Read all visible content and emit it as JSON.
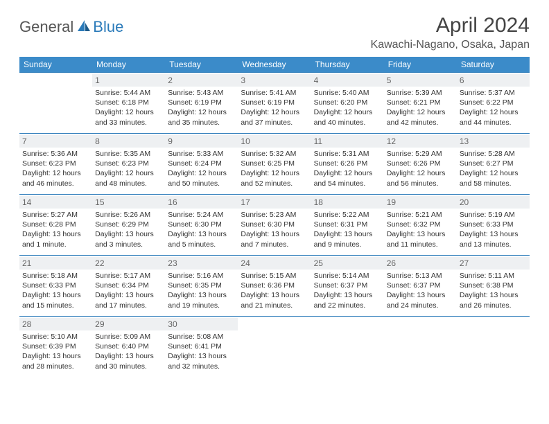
{
  "logo": {
    "general": "General",
    "blue": "Blue"
  },
  "title": "April 2024",
  "location": "Kawachi-Nagano, Osaka, Japan",
  "colors": {
    "header_bg": "#3b8bc9",
    "border": "#2a7ab9",
    "daynum_bg": "#eef0f2",
    "text": "#333333",
    "logo_gray": "#555555",
    "logo_blue": "#2a7ab9"
  },
  "weekdays": [
    "Sunday",
    "Monday",
    "Tuesday",
    "Wednesday",
    "Thursday",
    "Friday",
    "Saturday"
  ],
  "weeks": [
    [
      {
        "empty": true
      },
      {
        "n": "1",
        "sr": "Sunrise: 5:44 AM",
        "ss": "Sunset: 6:18 PM",
        "d1": "Daylight: 12 hours",
        "d2": "and 33 minutes."
      },
      {
        "n": "2",
        "sr": "Sunrise: 5:43 AM",
        "ss": "Sunset: 6:19 PM",
        "d1": "Daylight: 12 hours",
        "d2": "and 35 minutes."
      },
      {
        "n": "3",
        "sr": "Sunrise: 5:41 AM",
        "ss": "Sunset: 6:19 PM",
        "d1": "Daylight: 12 hours",
        "d2": "and 37 minutes."
      },
      {
        "n": "4",
        "sr": "Sunrise: 5:40 AM",
        "ss": "Sunset: 6:20 PM",
        "d1": "Daylight: 12 hours",
        "d2": "and 40 minutes."
      },
      {
        "n": "5",
        "sr": "Sunrise: 5:39 AM",
        "ss": "Sunset: 6:21 PM",
        "d1": "Daylight: 12 hours",
        "d2": "and 42 minutes."
      },
      {
        "n": "6",
        "sr": "Sunrise: 5:37 AM",
        "ss": "Sunset: 6:22 PM",
        "d1": "Daylight: 12 hours",
        "d2": "and 44 minutes."
      }
    ],
    [
      {
        "n": "7",
        "sr": "Sunrise: 5:36 AM",
        "ss": "Sunset: 6:23 PM",
        "d1": "Daylight: 12 hours",
        "d2": "and 46 minutes."
      },
      {
        "n": "8",
        "sr": "Sunrise: 5:35 AM",
        "ss": "Sunset: 6:23 PM",
        "d1": "Daylight: 12 hours",
        "d2": "and 48 minutes."
      },
      {
        "n": "9",
        "sr": "Sunrise: 5:33 AM",
        "ss": "Sunset: 6:24 PM",
        "d1": "Daylight: 12 hours",
        "d2": "and 50 minutes."
      },
      {
        "n": "10",
        "sr": "Sunrise: 5:32 AM",
        "ss": "Sunset: 6:25 PM",
        "d1": "Daylight: 12 hours",
        "d2": "and 52 minutes."
      },
      {
        "n": "11",
        "sr": "Sunrise: 5:31 AM",
        "ss": "Sunset: 6:26 PM",
        "d1": "Daylight: 12 hours",
        "d2": "and 54 minutes."
      },
      {
        "n": "12",
        "sr": "Sunrise: 5:29 AM",
        "ss": "Sunset: 6:26 PM",
        "d1": "Daylight: 12 hours",
        "d2": "and 56 minutes."
      },
      {
        "n": "13",
        "sr": "Sunrise: 5:28 AM",
        "ss": "Sunset: 6:27 PM",
        "d1": "Daylight: 12 hours",
        "d2": "and 58 minutes."
      }
    ],
    [
      {
        "n": "14",
        "sr": "Sunrise: 5:27 AM",
        "ss": "Sunset: 6:28 PM",
        "d1": "Daylight: 13 hours",
        "d2": "and 1 minute."
      },
      {
        "n": "15",
        "sr": "Sunrise: 5:26 AM",
        "ss": "Sunset: 6:29 PM",
        "d1": "Daylight: 13 hours",
        "d2": "and 3 minutes."
      },
      {
        "n": "16",
        "sr": "Sunrise: 5:24 AM",
        "ss": "Sunset: 6:30 PM",
        "d1": "Daylight: 13 hours",
        "d2": "and 5 minutes."
      },
      {
        "n": "17",
        "sr": "Sunrise: 5:23 AM",
        "ss": "Sunset: 6:30 PM",
        "d1": "Daylight: 13 hours",
        "d2": "and 7 minutes."
      },
      {
        "n": "18",
        "sr": "Sunrise: 5:22 AM",
        "ss": "Sunset: 6:31 PM",
        "d1": "Daylight: 13 hours",
        "d2": "and 9 minutes."
      },
      {
        "n": "19",
        "sr": "Sunrise: 5:21 AM",
        "ss": "Sunset: 6:32 PM",
        "d1": "Daylight: 13 hours",
        "d2": "and 11 minutes."
      },
      {
        "n": "20",
        "sr": "Sunrise: 5:19 AM",
        "ss": "Sunset: 6:33 PM",
        "d1": "Daylight: 13 hours",
        "d2": "and 13 minutes."
      }
    ],
    [
      {
        "n": "21",
        "sr": "Sunrise: 5:18 AM",
        "ss": "Sunset: 6:33 PM",
        "d1": "Daylight: 13 hours",
        "d2": "and 15 minutes."
      },
      {
        "n": "22",
        "sr": "Sunrise: 5:17 AM",
        "ss": "Sunset: 6:34 PM",
        "d1": "Daylight: 13 hours",
        "d2": "and 17 minutes."
      },
      {
        "n": "23",
        "sr": "Sunrise: 5:16 AM",
        "ss": "Sunset: 6:35 PM",
        "d1": "Daylight: 13 hours",
        "d2": "and 19 minutes."
      },
      {
        "n": "24",
        "sr": "Sunrise: 5:15 AM",
        "ss": "Sunset: 6:36 PM",
        "d1": "Daylight: 13 hours",
        "d2": "and 21 minutes."
      },
      {
        "n": "25",
        "sr": "Sunrise: 5:14 AM",
        "ss": "Sunset: 6:37 PM",
        "d1": "Daylight: 13 hours",
        "d2": "and 22 minutes."
      },
      {
        "n": "26",
        "sr": "Sunrise: 5:13 AM",
        "ss": "Sunset: 6:37 PM",
        "d1": "Daylight: 13 hours",
        "d2": "and 24 minutes."
      },
      {
        "n": "27",
        "sr": "Sunrise: 5:11 AM",
        "ss": "Sunset: 6:38 PM",
        "d1": "Daylight: 13 hours",
        "d2": "and 26 minutes."
      }
    ],
    [
      {
        "n": "28",
        "sr": "Sunrise: 5:10 AM",
        "ss": "Sunset: 6:39 PM",
        "d1": "Daylight: 13 hours",
        "d2": "and 28 minutes."
      },
      {
        "n": "29",
        "sr": "Sunrise: 5:09 AM",
        "ss": "Sunset: 6:40 PM",
        "d1": "Daylight: 13 hours",
        "d2": "and 30 minutes."
      },
      {
        "n": "30",
        "sr": "Sunrise: 5:08 AM",
        "ss": "Sunset: 6:41 PM",
        "d1": "Daylight: 13 hours",
        "d2": "and 32 minutes."
      },
      {
        "empty": true
      },
      {
        "empty": true
      },
      {
        "empty": true
      },
      {
        "empty": true
      }
    ]
  ]
}
